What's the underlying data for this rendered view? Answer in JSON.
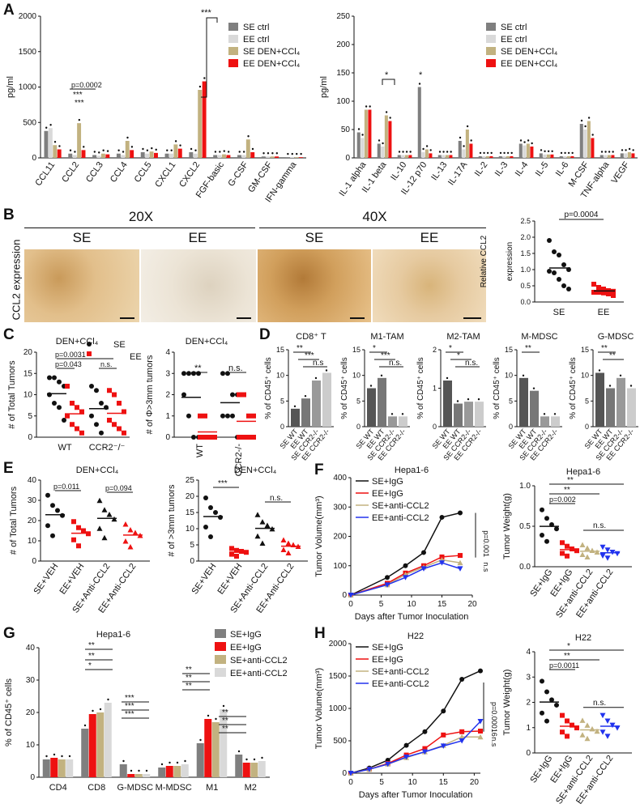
{
  "colors": {
    "se_ctrl": "#7f7f7f",
    "ee_ctrl": "#d9d9d9",
    "se_den": "#c2b280",
    "ee_den": "#ee1111",
    "black": "#111111",
    "red": "#ee1111",
    "tan": "#c2b280",
    "blue": "#2233ee",
    "micro_bg": "#e9d2a8",
    "micro_dark": "#b27a38"
  },
  "panel_letters": {
    "a": "A",
    "b": "B",
    "c": "C",
    "d": "D",
    "e": "E",
    "f": "F",
    "g": "G",
    "h": "H"
  },
  "panel_a": {
    "legend": [
      "SE ctrl",
      "EE ctrl",
      "SE DEN+CCl₄",
      "EE DEN+CCl₄"
    ],
    "left": {
      "chart_data": {
        "type": "bar",
        "ylabel": "pg/ml",
        "ylim": [
          0,
          2000
        ],
        "yticks": [
          "0",
          "500",
          "1000",
          "1500",
          "2000"
        ],
        "categories": [
          "CCL11",
          "CCL2",
          "CCL3",
          "CCL4",
          "CCL5",
          "CXCL1",
          "CXCL2",
          "FGF-basic",
          "G-CSF",
          "GM-CSF",
          "IFN-gamma"
        ],
        "series": [
          {
            "name": "SE ctrl",
            "values": [
              380,
              60,
              40,
              60,
              80,
              60,
              80,
              40,
              40,
              20,
              10
            ]
          },
          {
            "name": "EE ctrl",
            "values": [
              420,
              40,
              30,
              40,
              60,
              60,
              60,
              40,
              40,
              20,
              10
            ]
          },
          {
            "name": "SE DEN+CCl₄",
            "values": [
              180,
              490,
              60,
              240,
              90,
              190,
              960,
              50,
              260,
              20,
              10
            ]
          },
          {
            "name": "EE DEN+CCl₄",
            "values": [
              120,
              110,
              50,
              110,
              70,
              130,
              1080,
              40,
              80,
              20,
              10
            ]
          }
        ],
        "annotations": [
          "p=0.0002",
          "***",
          "***",
          "***"
        ]
      }
    },
    "right": {
      "chart_data": {
        "type": "bar",
        "ylabel": "pg/ml",
        "ylim": [
          0,
          250
        ],
        "yticks": [
          "0",
          "50",
          "100",
          "150",
          "200",
          "250"
        ],
        "categories": [
          "IL-1 alpha",
          "IL-1 beta",
          "IL-10",
          "IL-12 p70",
          "IL-13",
          "IL-17A",
          "IL-2",
          "IL-3",
          "IL-4",
          "IL-5",
          "IL-6",
          "M-CSF",
          "TNF-alpha",
          "VEGF"
        ],
        "series": [
          {
            "name": "SE ctrl",
            "values": [
              45,
              25,
              5,
              125,
              5,
              30,
              3,
              3,
              25,
              8,
              3,
              60,
              5,
              8
            ]
          },
          {
            "name": "EE ctrl",
            "values": [
              35,
              20,
              5,
              10,
              5,
              15,
              3,
              3,
              22,
              6,
              3,
              50,
              5,
              8
            ]
          },
          {
            "name": "SE DEN+CCl₄",
            "values": [
              85,
              75,
              5,
              15,
              5,
              50,
              3,
              3,
              25,
              6,
              3,
              65,
              5,
              10
            ]
          },
          {
            "name": "EE DEN+CCl₄",
            "values": [
              85,
              65,
              5,
              8,
              5,
              25,
              3,
              3,
              20,
              6,
              3,
              35,
              5,
              8
            ]
          }
        ],
        "annotations": [
          "*",
          "*"
        ]
      }
    }
  },
  "panel_b": {
    "header_20x": "20X",
    "header_40x": "40X",
    "labels": [
      "SE",
      "EE",
      "SE",
      "EE"
    ],
    "ylabel": "CCL2 expression",
    "chart_data": {
      "type": "scatter",
      "ylabel": "Relative CCL2 expression",
      "ylim": [
        0,
        2.5
      ],
      "yticks": [
        "0.0",
        "0.5",
        "1.0",
        "1.5",
        "2.0",
        "2.5"
      ],
      "categories": [
        "SE",
        "EE"
      ],
      "pvalue": "p=0.0004",
      "SE": [
        1.9,
        1.55,
        1.45,
        1.15,
        1.0,
        0.95,
        0.9,
        0.7,
        0.5,
        0.4
      ],
      "EE": [
        0.55,
        0.45,
        0.4,
        0.35,
        0.33,
        0.3,
        0.3,
        0.28,
        0.25,
        0.2
      ]
    }
  },
  "panel_c": {
    "legend": [
      "SE",
      "EE"
    ],
    "left": {
      "chart_data": {
        "type": "scatter",
        "title": "DEN+CCl₄",
        "ylabel": "# of Total Tumors",
        "ylim": [
          0,
          20
        ],
        "yticks": [
          "0",
          "5",
          "10",
          "15",
          "20"
        ],
        "categories": [
          "WT",
          "CCR2⁻/⁻"
        ],
        "SE_WT": [
          14,
          14,
          13,
          12,
          10,
          8,
          7,
          4
        ],
        "EE_WT": [
          12,
          8,
          7,
          6,
          5,
          3,
          2,
          1
        ],
        "SE_CCR2": [
          12,
          11,
          8,
          7,
          5,
          3,
          1
        ],
        "EE_CCR2": [
          11,
          10,
          8,
          6,
          4,
          3,
          2,
          1
        ],
        "annotations": [
          "p=0.0031",
          "p=0.043",
          "n.s."
        ]
      }
    },
    "right": {
      "chart_data": {
        "type": "scatter",
        "title": "DEN+CCl₄",
        "ylabel": "# of Φ>3mm tumors",
        "ylim": [
          0,
          4
        ],
        "yticks": [
          "0",
          "1",
          "2",
          "3",
          "4"
        ],
        "categories": [
          "WT",
          "CCR2-/-"
        ],
        "SE_WT": [
          3,
          3,
          3,
          3,
          2,
          1,
          0,
          0
        ],
        "EE_WT": [
          1,
          1,
          0,
          0,
          0,
          0,
          0,
          0
        ],
        "SE_CCR2": [
          3,
          3,
          2,
          2,
          1,
          1,
          1,
          0
        ],
        "EE_CCR2": [
          2,
          2,
          1,
          1,
          0,
          0,
          0,
          0
        ],
        "annotations": [
          "**",
          "n.s."
        ]
      }
    }
  },
  "panel_d": {
    "ylabel": "% of CD45⁺ cells",
    "xlabels": [
      "SE WT",
      "EE WT",
      "SE CCR2-/-",
      "EE CCR2-/-"
    ],
    "charts": [
      {
        "title": "CD8⁺ T",
        "ylim": [
          0,
          15
        ],
        "yticks": [
          "0",
          "5",
          "10",
          "15"
        ],
        "values": [
          3.5,
          5.5,
          9,
          10.5
        ],
        "annotations": [
          "**",
          "***",
          "n.s"
        ]
      },
      {
        "title": "M1-TAM",
        "ylim": [
          0,
          15
        ],
        "yticks": [
          "0",
          "5",
          "10",
          "15"
        ],
        "values": [
          7.5,
          9.5,
          2,
          2
        ],
        "annotations": [
          "*",
          "***",
          "n.s."
        ]
      },
      {
        "title": "M2-TAM",
        "ylim": [
          0,
          2
        ],
        "yticks": [
          "0",
          "1",
          "2"
        ],
        "values": [
          1.2,
          0.6,
          0.65,
          0.65
        ],
        "annotations": [
          "*",
          "*",
          "n.s."
        ]
      },
      {
        "title": "M-MDSC",
        "ylim": [
          0,
          15
        ],
        "yticks": [
          "0",
          "5",
          "10",
          "15"
        ],
        "values": [
          9.5,
          7,
          2,
          2
        ],
        "annotations": [
          "**"
        ]
      },
      {
        "title": "G-MDSC",
        "ylim": [
          0,
          15
        ],
        "yticks": [
          "0",
          "5",
          "10",
          "15"
        ],
        "values": [
          10.5,
          7.5,
          9.5,
          7.5
        ],
        "annotations": [
          "**",
          "**"
        ]
      }
    ]
  },
  "panel_e": {
    "xlabels": [
      "SE+VEH",
      "EE+VEH",
      "SE+Anti-CCL2",
      "EE+Anti-CCL2"
    ],
    "left": {
      "chart_data": {
        "type": "scatter",
        "title": "DEN+CCl₄",
        "ylabel": "# of Total Tumors",
        "ylim": [
          0,
          40
        ],
        "yticks": [
          "0",
          "10",
          "20",
          "30",
          "40"
        ],
        "means": [
          25,
          15,
          23,
          14
        ],
        "annotations": [
          "p=0.011",
          "p=0.094"
        ]
      }
    },
    "right": {
      "chart_data": {
        "type": "scatter",
        "title": "DEN+CCl₄",
        "ylabel": "# of >3mm tumors",
        "ylim": [
          0,
          25
        ],
        "yticks": [
          "0",
          "5",
          "10",
          "15",
          "20",
          "25"
        ],
        "means": [
          15,
          3,
          11,
          5
        ],
        "annotations": [
          "***",
          "n.s."
        ]
      }
    }
  },
  "panel_f": {
    "line": {
      "chart_data": {
        "type": "line",
        "title": "Hepa1-6",
        "xlabel": "Days after Tumor Inoculation",
        "ylabel": "Tumor Volume(mm³)",
        "xlim": [
          0,
          20
        ],
        "ylim": [
          0,
          400
        ],
        "xticks": [
          "0",
          "5",
          "10",
          "15",
          "20"
        ],
        "yticks": [
          "0",
          "100",
          "200",
          "300",
          "400"
        ],
        "x": [
          0,
          6,
          9,
          12,
          15,
          18
        ],
        "series": [
          {
            "name": "SE+IgG",
            "values": [
              0,
              60,
              100,
              145,
              265,
              280
            ]
          },
          {
            "name": "EE+IgG",
            "values": [
              0,
              40,
              75,
              100,
              130,
              135
            ]
          },
          {
            "name": "SE+anti-CCL2",
            "values": [
              0,
              35,
              70,
              95,
              120,
              110
            ]
          },
          {
            "name": "EE+anti-CCL2",
            "values": [
              0,
              35,
              60,
              90,
              110,
              90
            ]
          }
        ],
        "annotations": [
          "p=0.001",
          "n.s"
        ]
      }
    },
    "scatter": {
      "chart_data": {
        "type": "scatter",
        "title": "Hepa1-6",
        "ylabel": "Tumor Weight(g)",
        "ylim": [
          0,
          1.0
        ],
        "yticks": [
          "0.0",
          "0.5",
          "1.0"
        ],
        "categories": [
          "SE+IgG",
          "EE+IgG",
          "SE+anti-CCL2",
          "EE+anti-CCL2"
        ],
        "means": [
          0.52,
          0.22,
          0.2,
          0.18
        ],
        "annotations": [
          "**",
          "**",
          "p=0.002",
          "n.s."
        ]
      }
    }
  },
  "panel_g": {
    "chart_data": {
      "type": "bar",
      "title": "Hepa1-6",
      "ylabel": "% of CD45⁺ cells",
      "ylim": [
        0,
        40
      ],
      "yticks": [
        "0",
        "10",
        "20",
        "30",
        "40"
      ],
      "categories": [
        "CD4",
        "CD8",
        "G-MDSC",
        "M-MDSC",
        "M1",
        "M2"
      ],
      "series": [
        {
          "name": "SE+IgG",
          "values": [
            5.5,
            15,
            4,
            3,
            10.5,
            7
          ]
        },
        {
          "name": "EE+IgG",
          "values": [
            6,
            19.5,
            1,
            3.5,
            18,
            4.5
          ]
        },
        {
          "name": "SE+anti-CCL2",
          "values": [
            5.5,
            20,
            1,
            3.5,
            17,
            4.5
          ]
        },
        {
          "name": "EE+anti-CCL2",
          "values": [
            5.5,
            23,
            1,
            4,
            21,
            5
          ]
        }
      ],
      "annotations": [
        "**",
        "**",
        "*",
        "***",
        "***",
        "***",
        "**",
        "**",
        "**",
        "**",
        "**",
        "**"
      ]
    },
    "legend": [
      "SE+IgG",
      "EE+IgG",
      "SE+anti-CCL2",
      "EE+anti-CCL2"
    ]
  },
  "panel_h": {
    "line": {
      "chart_data": {
        "type": "line",
        "title": "H22",
        "xlabel": "Days after Tumor Inoculation",
        "ylabel": "Tumor Volume(mm³)",
        "xlim": [
          0,
          21
        ],
        "ylim": [
          0,
          2000
        ],
        "xticks": [
          "0",
          "5",
          "10",
          "15",
          "20"
        ],
        "yticks": [
          "0",
          "500",
          "1000",
          "1500",
          "2000"
        ],
        "x": [
          0,
          3,
          6,
          9,
          12,
          15,
          18,
          21
        ],
        "series": [
          {
            "name": "SE+IgG",
            "values": [
              0,
              80,
              200,
              430,
              640,
              960,
              1450,
              1580
            ]
          },
          {
            "name": "EE+IgG",
            "values": [
              0,
              60,
              150,
              280,
              380,
              590,
              640,
              650
            ]
          },
          {
            "name": "SE+anti-CCL2",
            "values": [
              0,
              60,
              140,
              240,
              330,
              430,
              560,
              560
            ]
          },
          {
            "name": "EE+anti-CCL2",
            "values": [
              0,
              60,
              140,
              250,
              330,
              420,
              500,
              800
            ]
          }
        ],
        "annotations": [
          "p=0.00016",
          "n.s"
        ]
      }
    },
    "scatter": {
      "chart_data": {
        "type": "scatter",
        "title": "H22",
        "ylabel": "Tumor Weight(g)",
        "ylim": [
          0,
          4
        ],
        "yticks": [
          "0",
          "1",
          "2",
          "3",
          "4"
        ],
        "categories": [
          "SE+IgG",
          "EE+IgG",
          "SE+anti-CCL2",
          "EE+anti-CCL2"
        ],
        "means": [
          2.1,
          1.1,
          0.95,
          1.1
        ],
        "annotations": [
          "*",
          "**",
          "p=0.0011",
          "n.s."
        ]
      }
    }
  }
}
